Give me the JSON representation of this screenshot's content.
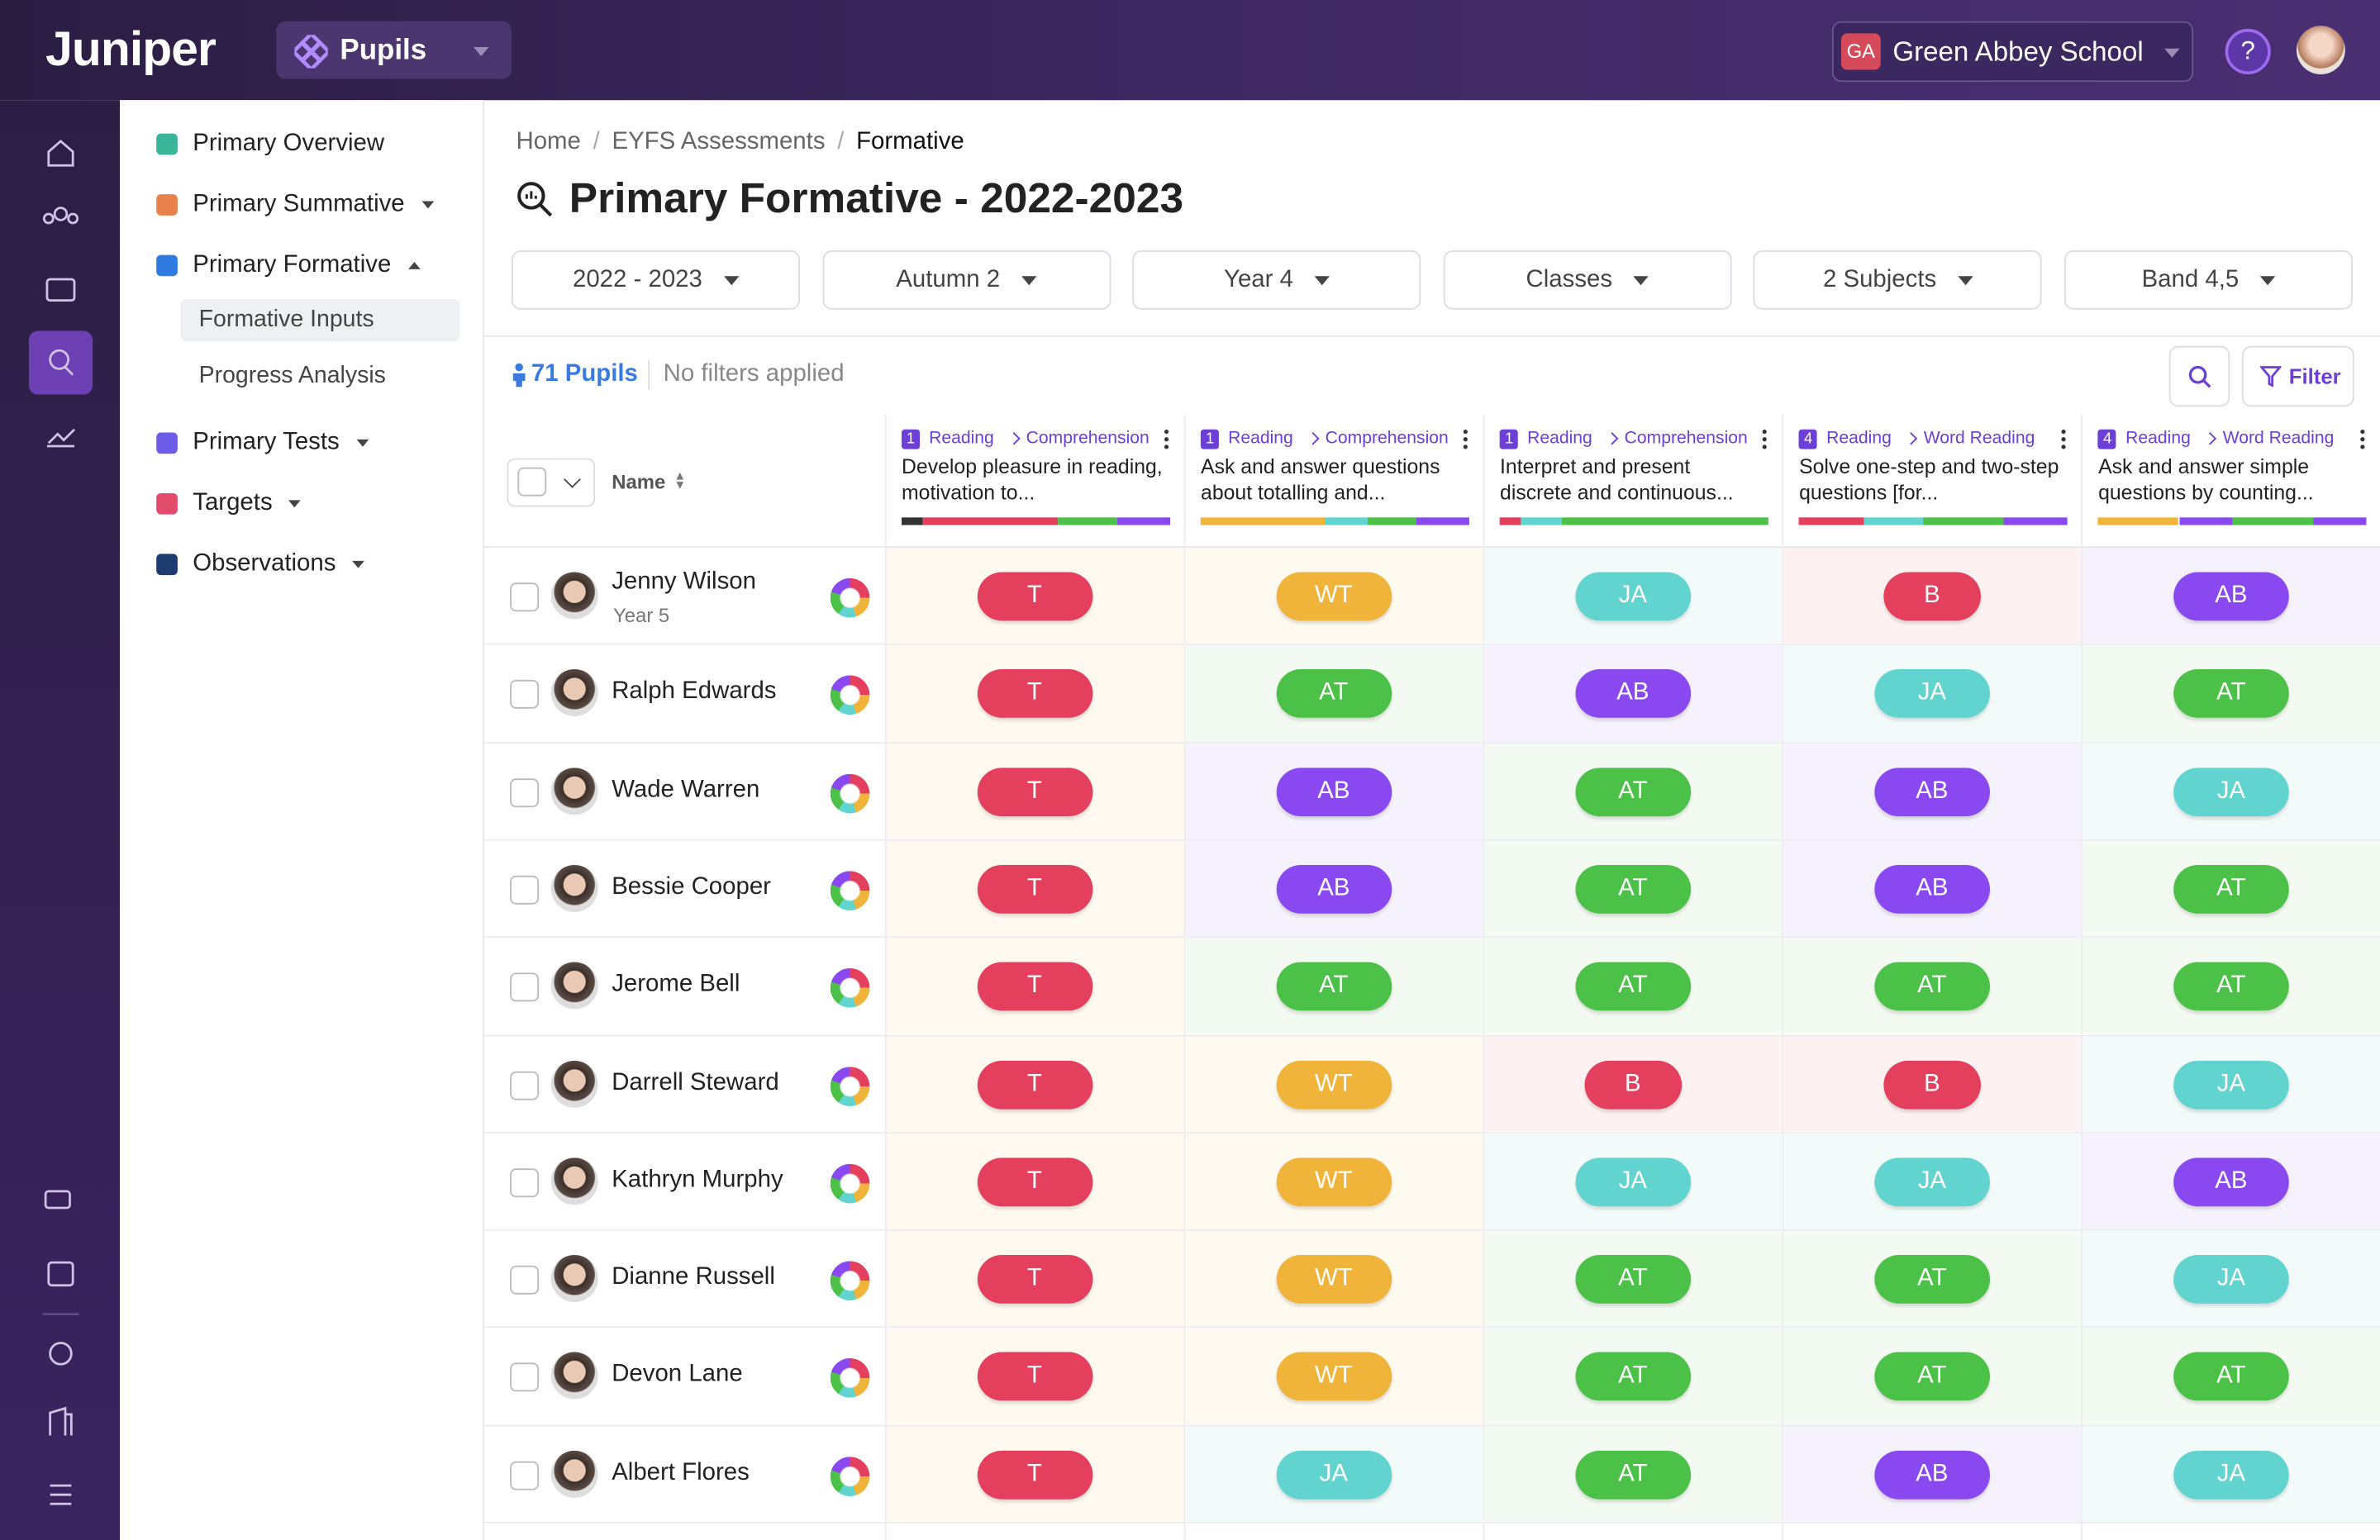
{
  "header": {
    "logo": "Juniper",
    "module": "Pupils",
    "school_initials": "GA",
    "school": "Green Abbey School",
    "help": "?"
  },
  "sidebar": {
    "items": [
      {
        "label": "Primary Overview"
      },
      {
        "label": "Primary Summative"
      },
      {
        "label": "Primary Formative",
        "children": [
          "Formative Inputs",
          "Progress Analysis"
        ]
      },
      {
        "label": "Primary Tests"
      },
      {
        "label": "Targets"
      },
      {
        "label": "Observations"
      }
    ]
  },
  "breadcrumb": [
    "Home",
    "EYFS Assessments",
    "Formative"
  ],
  "title": "Primary Formative - 2022-2023",
  "filters": [
    "2022 - 2023",
    "Autumn 2",
    "Year 4",
    "Classes",
    "2 Subjects",
    "Band 4,5"
  ],
  "toolbar": {
    "pupil_count": "71 Pupils",
    "filter_status": "No filters applied",
    "filter_button": "Filter"
  },
  "table": {
    "name_header": "Name",
    "columns": [
      {
        "badge": "1",
        "subject": "Reading",
        "strand": "Comprehension",
        "text": "Develop pleasure in reading, motivation to..."
      },
      {
        "badge": "1",
        "subject": "Reading",
        "strand": "Comprehension",
        "text": "Ask and answer questions about totalling and..."
      },
      {
        "badge": "1",
        "subject": "Reading",
        "strand": "Comprehension",
        "text": "Interpret and present discrete and continuous..."
      },
      {
        "badge": "4",
        "subject": "Reading",
        "strand": "Word Reading",
        "text": "Solve one-step and two-step questions [for..."
      },
      {
        "badge": "4",
        "subject": "Reading",
        "strand": "Word Reading",
        "text": "Ask and answer simple questions by counting..."
      }
    ],
    "rows": [
      {
        "name": "Jenny Wilson",
        "sub": "Year 5",
        "grades": [
          "T",
          "WT",
          "JA",
          "B",
          "AB"
        ]
      },
      {
        "name": "Ralph Edwards",
        "grades": [
          "T",
          "AT",
          "AB",
          "JA",
          "AT"
        ]
      },
      {
        "name": "Wade Warren",
        "grades": [
          "T",
          "AB",
          "AT",
          "AB",
          "JA"
        ]
      },
      {
        "name": "Bessie Cooper",
        "grades": [
          "T",
          "AB",
          "AT",
          "AB",
          "AT"
        ]
      },
      {
        "name": "Jerome Bell",
        "grades": [
          "T",
          "AT",
          "AT",
          "AT",
          "AT"
        ]
      },
      {
        "name": "Darrell Steward",
        "grades": [
          "T",
          "WT",
          "B",
          "B",
          "JA"
        ]
      },
      {
        "name": "Kathryn Murphy",
        "grades": [
          "T",
          "WT",
          "JA",
          "JA",
          "AB"
        ]
      },
      {
        "name": "Dianne Russell",
        "grades": [
          "T",
          "WT",
          "AT",
          "AT",
          "JA"
        ]
      },
      {
        "name": "Devon Lane",
        "grades": [
          "T",
          "WT",
          "AT",
          "AT",
          "AT"
        ]
      },
      {
        "name": "Albert Flores",
        "grades": [
          "T",
          "JA",
          "AT",
          "AB",
          "JA"
        ]
      }
    ]
  }
}
